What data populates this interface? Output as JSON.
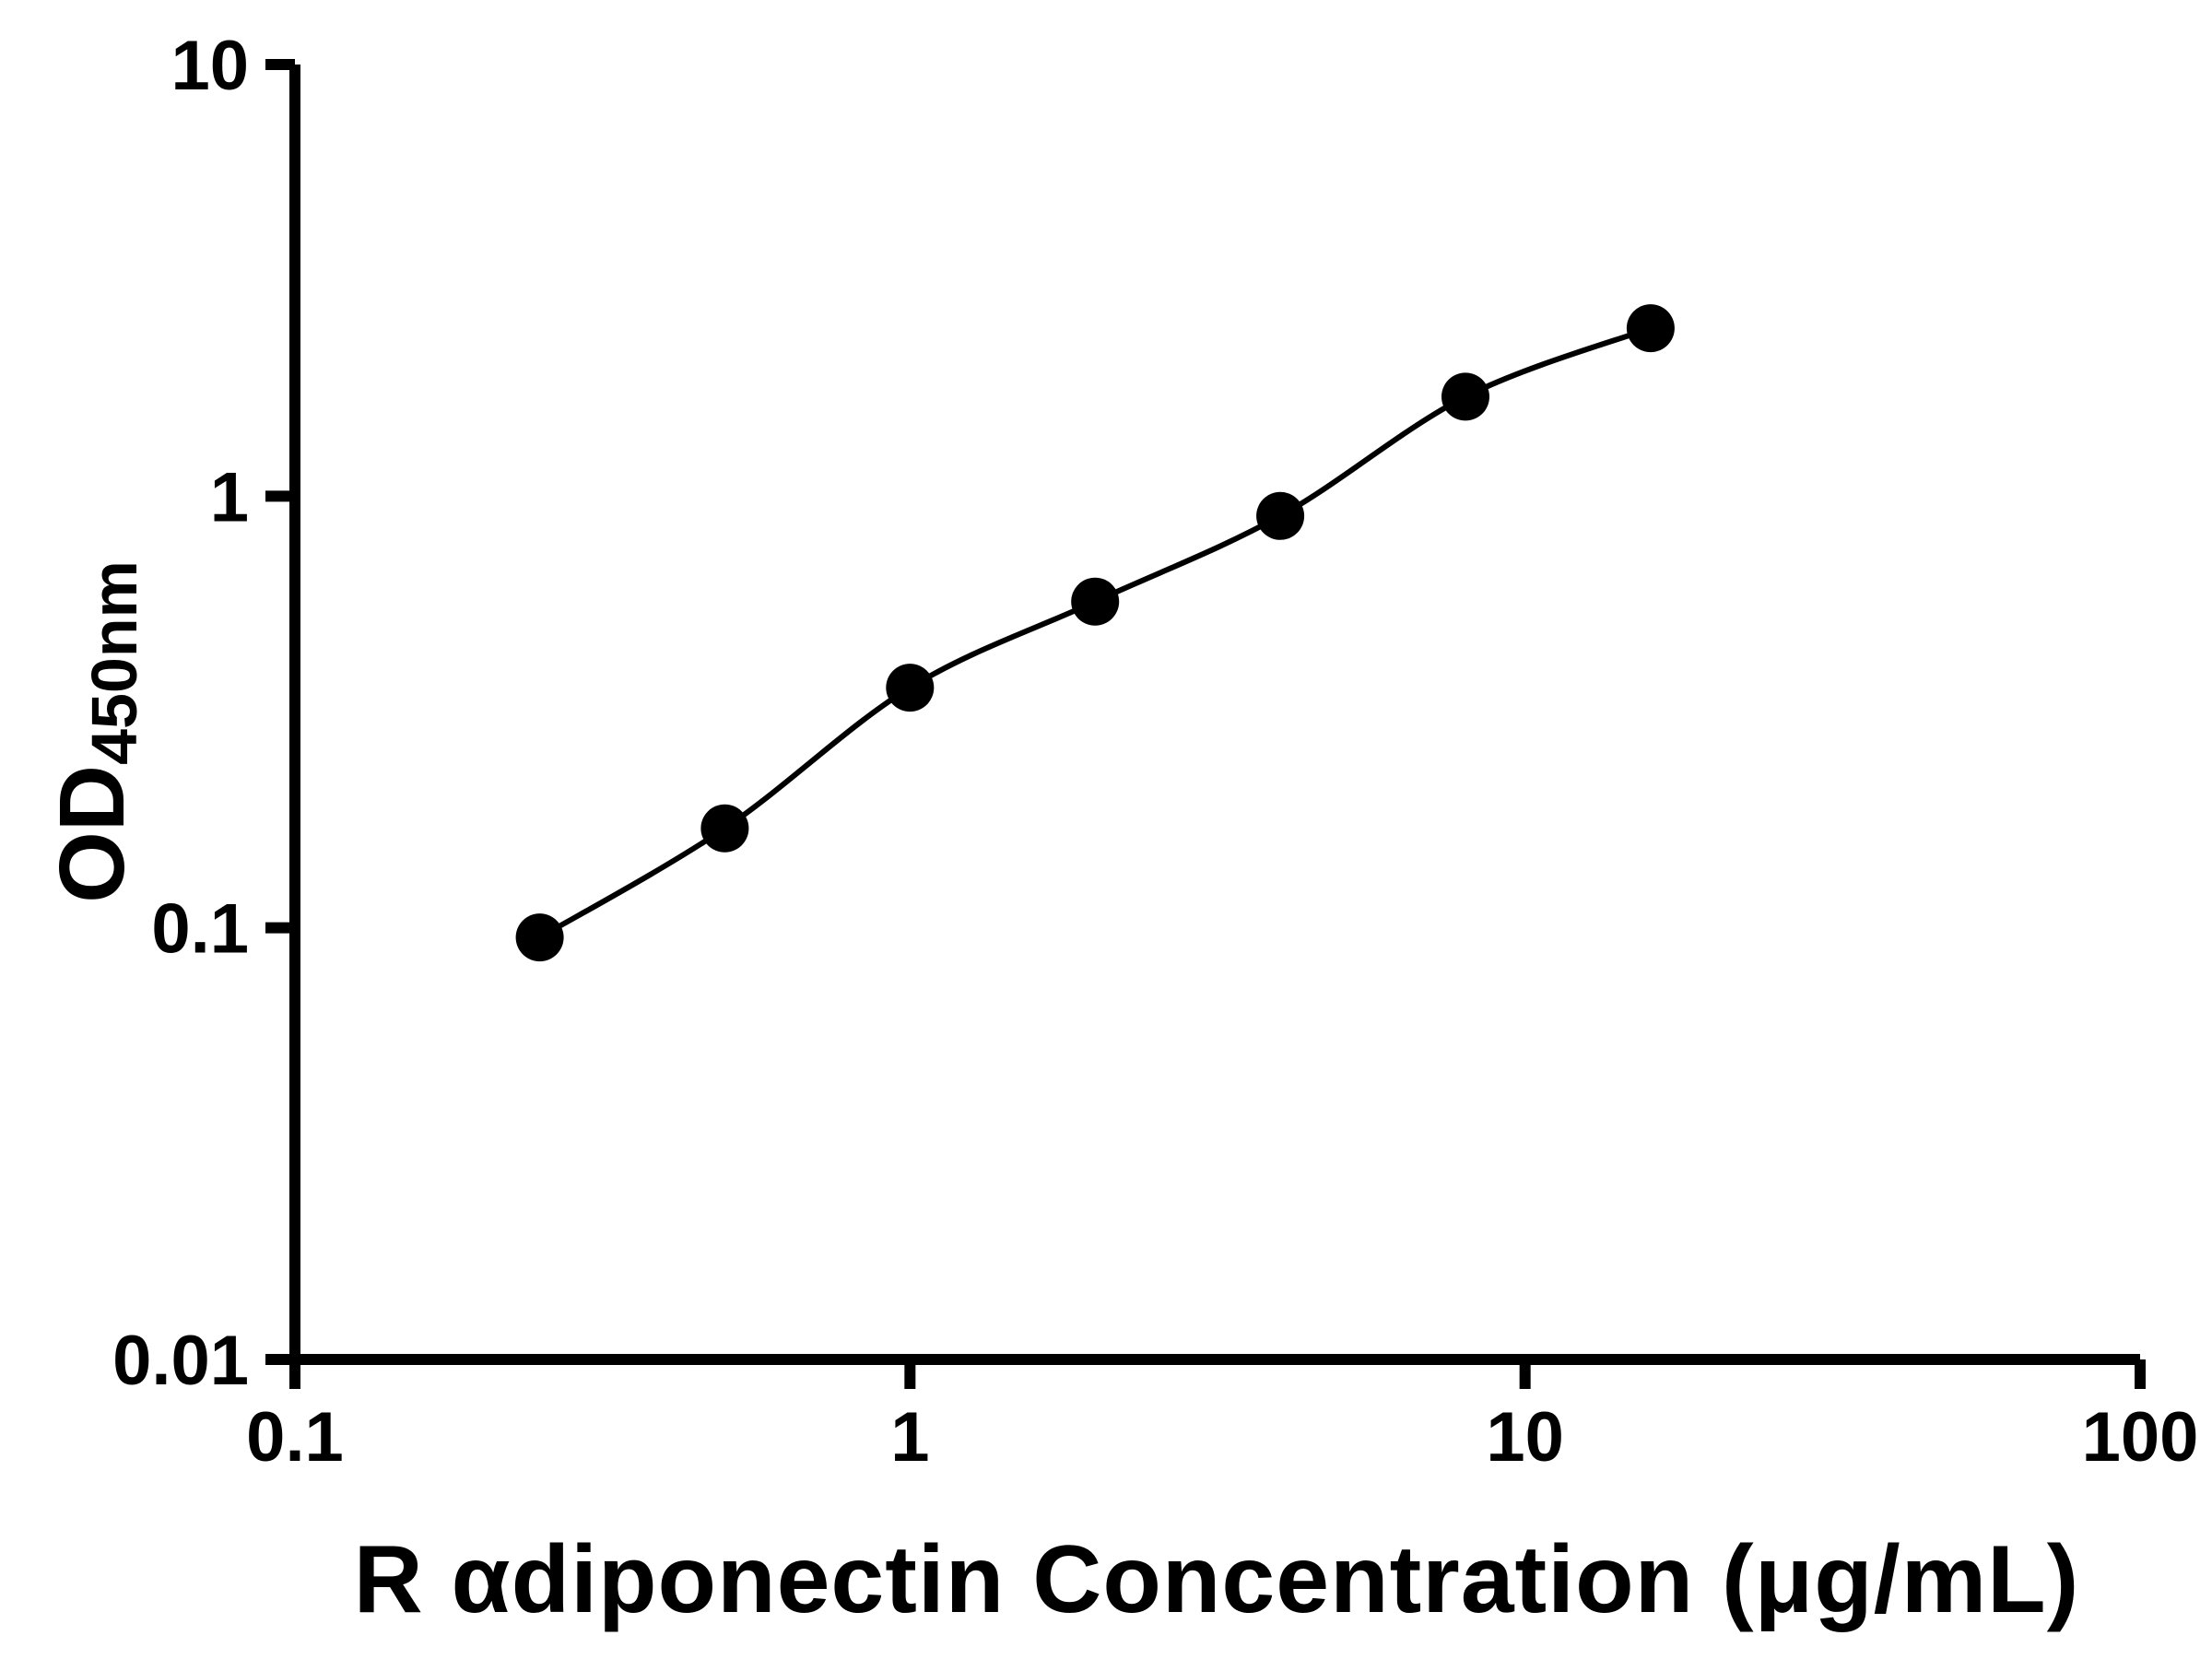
{
  "chart_data": {
    "type": "scatter",
    "title": "",
    "xlabel": "R αdiponectin Concentration (μg/mL)",
    "ylabel": "OD450nm",
    "ylabel_base": "OD",
    "ylabel_subscript": "450nm",
    "xscale": "log",
    "yscale": "log",
    "xlim": [
      0.1,
      100
    ],
    "ylim": [
      0.01,
      10
    ],
    "x_ticks": [
      0.1,
      1,
      10,
      100
    ],
    "x_tick_labels": [
      "0.1",
      "1",
      "10",
      "100"
    ],
    "y_ticks": [
      0.01,
      0.1,
      1,
      10
    ],
    "y_tick_labels": [
      "0.01",
      "0.1",
      "1",
      "10"
    ],
    "grid": false,
    "legend": "none",
    "series": [
      {
        "name": "standard-curve-points",
        "marker": "filled-circle",
        "color": "#000000",
        "x": [
          0.25,
          0.5,
          1,
          2,
          4,
          8,
          16
        ],
        "y": [
          0.095,
          0.17,
          0.36,
          0.57,
          0.9,
          1.7,
          2.45
        ]
      }
    ],
    "fit_line": {
      "type": "smooth",
      "color": "#000000"
    }
  },
  "colors": {
    "background": "#ffffff",
    "axis": "#000000",
    "marker": "#000000"
  }
}
